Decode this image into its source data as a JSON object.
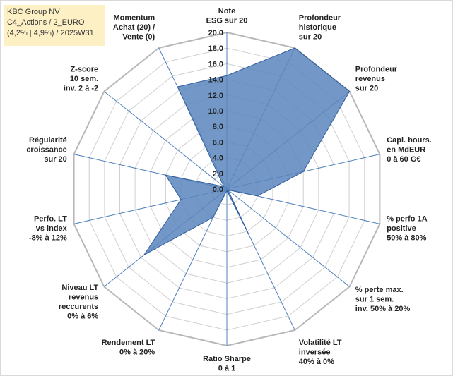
{
  "info": {
    "line1": "KBC Group NV",
    "line2": "C4_Actions / 2_EURO",
    "line3": "(4,2% | 4,9%) / 2025W31"
  },
  "colors": {
    "fill": "#5b86bd",
    "stroke": "#2e5e9e",
    "grid": "#d0d0d0",
    "axis": "#4f81bd"
  },
  "chart_data": {
    "type": "radar",
    "rlim": [
      0,
      20
    ],
    "ticks": [
      "0,0",
      "2,0",
      "4,0",
      "6,0",
      "8,0",
      "10,0",
      "12,0",
      "14,0",
      "16,0",
      "18,0",
      "20,0"
    ],
    "grid": true,
    "axes": [
      {
        "label": [
          "Note",
          "ESG sur 20"
        ],
        "value": 14.5
      },
      {
        "label": [
          "Profondeur",
          "historique",
          "sur 20"
        ],
        "value": 20.0
      },
      {
        "label": [
          "Profondeur",
          "revenus",
          "sur 20"
        ],
        "value": 20.0
      },
      {
        "label": [
          "Capi. bours.",
          "en MdEUR",
          "0 à 60 G€"
        ],
        "value": 10.0
      },
      {
        "label": [
          "% perfo 1A",
          "positive",
          "50% à 80%"
        ],
        "value": 4.0
      },
      {
        "label": [
          "% perte max.",
          "sur 1 sem.",
          "inv. 50% à 20%"
        ],
        "value": 0.2
      },
      {
        "label": [
          "Volatilité LT",
          "inversée",
          "40% à 0%"
        ],
        "value": 6.5
      },
      {
        "label": [
          "Ratio Sharpe",
          "0 à 1"
        ],
        "value": 0.2
      },
      {
        "label": [
          "Rendement LT",
          "0% à 20%"
        ],
        "value": 4.0
      },
      {
        "label": [
          "Niveau LT",
          "revenus",
          "reccurents",
          "0% à 6%"
        ],
        "value": 13.5
      },
      {
        "label": [
          "Perfo. LT",
          "vs index",
          "-8% à 12%"
        ],
        "value": 6.0
      },
      {
        "label": [
          "Régularité",
          "croissance",
          "sur 20"
        ],
        "value": 8.0
      },
      {
        "label": [
          "Z-score",
          "10 sem.",
          "inv. 2 à -2"
        ],
        "value": 0.5
      },
      {
        "label": [
          "Momentum",
          "Achat (20) /",
          "Vente (0)"
        ],
        "value": 14.5
      }
    ]
  }
}
